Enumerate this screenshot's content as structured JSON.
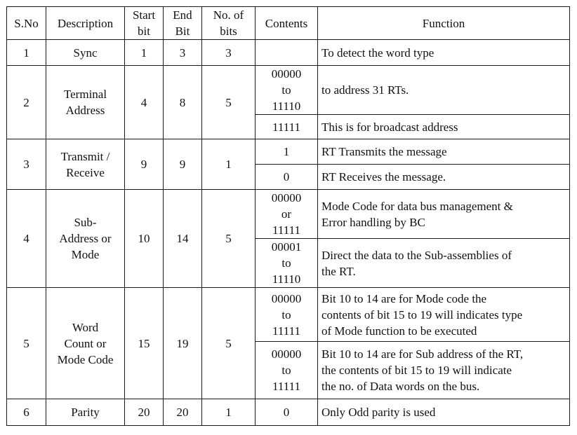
{
  "headers": {
    "sno": "S.No",
    "description": "Description",
    "start_bit": [
      "Start",
      "bit"
    ],
    "end_bit": [
      "End",
      "Bit"
    ],
    "no_of_bits": [
      "No. of",
      "bits"
    ],
    "contents": "Contents",
    "function": "Function"
  },
  "rows": [
    {
      "sno": "1",
      "description": [
        "Sync"
      ],
      "start": "1",
      "end": "3",
      "bits": "3",
      "subrows": [
        {
          "contents": [
            ""
          ],
          "function": [
            "To detect the word type"
          ]
        }
      ]
    },
    {
      "sno": "2",
      "description": [
        "Terminal",
        "Address"
      ],
      "start": "4",
      "end": "8",
      "bits": "5",
      "subrows": [
        {
          "contents": [
            "00000",
            "to",
            "11110"
          ],
          "function": [
            "to address 31 RTs."
          ]
        },
        {
          "contents": [
            "11111"
          ],
          "function": [
            "This is for broadcast address"
          ]
        }
      ]
    },
    {
      "sno": "3",
      "description": [
        "Transmit /",
        "Receive"
      ],
      "start": "9",
      "end": "9",
      "bits": "1",
      "subrows": [
        {
          "contents": [
            "1"
          ],
          "function": [
            "RT Transmits the message"
          ]
        },
        {
          "contents": [
            "0"
          ],
          "function": [
            "RT Receives the message."
          ]
        }
      ]
    },
    {
      "sno": "4",
      "description": [
        "Sub-",
        "Address or",
        "Mode"
      ],
      "start": "10",
      "end": "14",
      "bits": "5",
      "subrows": [
        {
          "contents": [
            "00000",
            "or",
            "11111"
          ],
          "function": [
            "Mode Code for data bus management &",
            "Error handling by BC"
          ]
        },
        {
          "contents": [
            "00001",
            "to",
            "11110"
          ],
          "function": [
            "Direct the data to the Sub-assemblies of",
            "the RT."
          ]
        }
      ]
    },
    {
      "sno": "5",
      "description": [
        "Word",
        "Count or",
        "Mode Code"
      ],
      "start": "15",
      "end": "19",
      "bits": "5",
      "subrows": [
        {
          "contents": [
            "00000",
            "to",
            "11111"
          ],
          "function": [
            "Bit 10 to 14 are for Mode code the",
            "contents of bit 15 to 19 will indicates type",
            "of Mode function to be executed"
          ]
        },
        {
          "contents": [
            "00000",
            "to",
            "11111"
          ],
          "function": [
            "Bit 10 to 14 are for Sub address of the RT,",
            "the contents of bit 15 to 19 will indicate",
            "the no. of Data words on the bus."
          ]
        }
      ]
    },
    {
      "sno": "6",
      "description": [
        "Parity"
      ],
      "start": "20",
      "end": "20",
      "bits": "1",
      "subrows": [
        {
          "contents": [
            "0"
          ],
          "function": [
            "Only Odd parity is used"
          ]
        }
      ]
    }
  ]
}
